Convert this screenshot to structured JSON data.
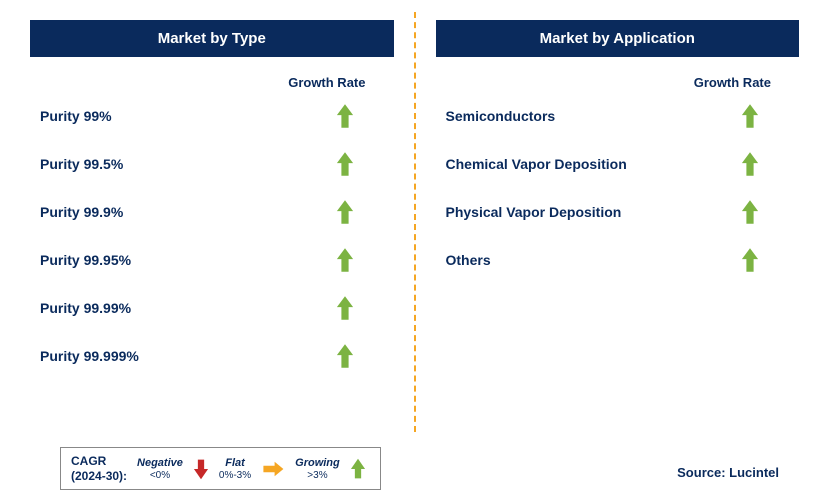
{
  "colors": {
    "header_bg": "#0a2a5c",
    "text": "#0a2a5c",
    "arrow_green": "#7cb342",
    "arrow_red": "#c62828",
    "arrow_yellow": "#f5a623",
    "divider": "#f5a623"
  },
  "left": {
    "title": "Market by Type",
    "growth_label": "Growth Rate",
    "items": [
      {
        "label": "Purity 99%",
        "trend": "growing"
      },
      {
        "label": "Purity 99.5%",
        "trend": "growing"
      },
      {
        "label": "Purity 99.9%",
        "trend": "growing"
      },
      {
        "label": "Purity 99.95%",
        "trend": "growing"
      },
      {
        "label": "Purity 99.99%",
        "trend": "growing"
      },
      {
        "label": "Purity 99.999%",
        "trend": "growing"
      }
    ]
  },
  "right": {
    "title": "Market by Application",
    "growth_label": "Growth Rate",
    "items": [
      {
        "label": "Semiconductors",
        "trend": "growing"
      },
      {
        "label": "Chemical Vapor Deposition",
        "trend": "growing"
      },
      {
        "label": "Physical Vapor Deposition",
        "trend": "growing"
      },
      {
        "label": "Others",
        "trend": "growing"
      }
    ]
  },
  "legend": {
    "title_line1": "CAGR",
    "title_line2": "(2024-30):",
    "negative": {
      "label": "Negative",
      "range": "<0%"
    },
    "flat": {
      "label": "Flat",
      "range": "0%-3%"
    },
    "growing": {
      "label": "Growing",
      "range": ">3%"
    }
  },
  "source": "Source: Lucintel"
}
